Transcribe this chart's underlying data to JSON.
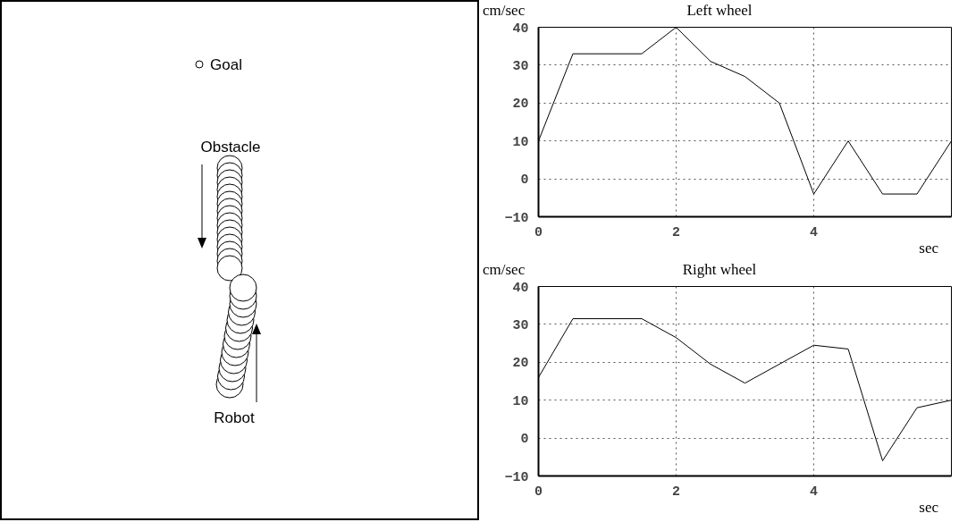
{
  "chart_data": [
    {
      "type": "other",
      "annotations": [
        "Goal",
        "Obstacle",
        "Robot"
      ]
    },
    {
      "type": "line",
      "title": "Left wheel",
      "ylabel": "cm/sec",
      "xlabel": "sec",
      "xlim": [
        0,
        6
      ],
      "ylim": [
        -10,
        40
      ],
      "xticks": [
        0,
        2,
        4
      ],
      "yticks": [
        -10,
        0,
        10,
        20,
        30,
        40
      ],
      "grid": true,
      "series": [
        {
          "color": "#000000",
          "x": [
            0,
            0.5,
            1.5,
            2,
            2.5,
            3,
            3.5,
            4,
            4.5,
            5,
            5.5,
            6
          ],
          "values": [
            10,
            33,
            33,
            40,
            31,
            27,
            20,
            -4,
            10,
            -4,
            -4,
            10
          ]
        }
      ]
    },
    {
      "type": "line",
      "title": "Right wheel",
      "ylabel": "cm/sec",
      "xlabel": "sec",
      "xlim": [
        0,
        6
      ],
      "ylim": [
        -10,
        40
      ],
      "xticks": [
        0,
        2,
        4
      ],
      "yticks": [
        -10,
        0,
        10,
        20,
        30,
        40
      ],
      "grid": true,
      "series": [
        {
          "color": "#000000",
          "x": [
            0,
            0.5,
            1.5,
            2,
            2.5,
            3,
            4,
            4.5,
            5,
            5.5,
            6
          ],
          "values": [
            16,
            31.5,
            31.5,
            26.5,
            19.5,
            14.5,
            24.5,
            23.5,
            -6,
            8,
            10
          ]
        }
      ]
    }
  ]
}
